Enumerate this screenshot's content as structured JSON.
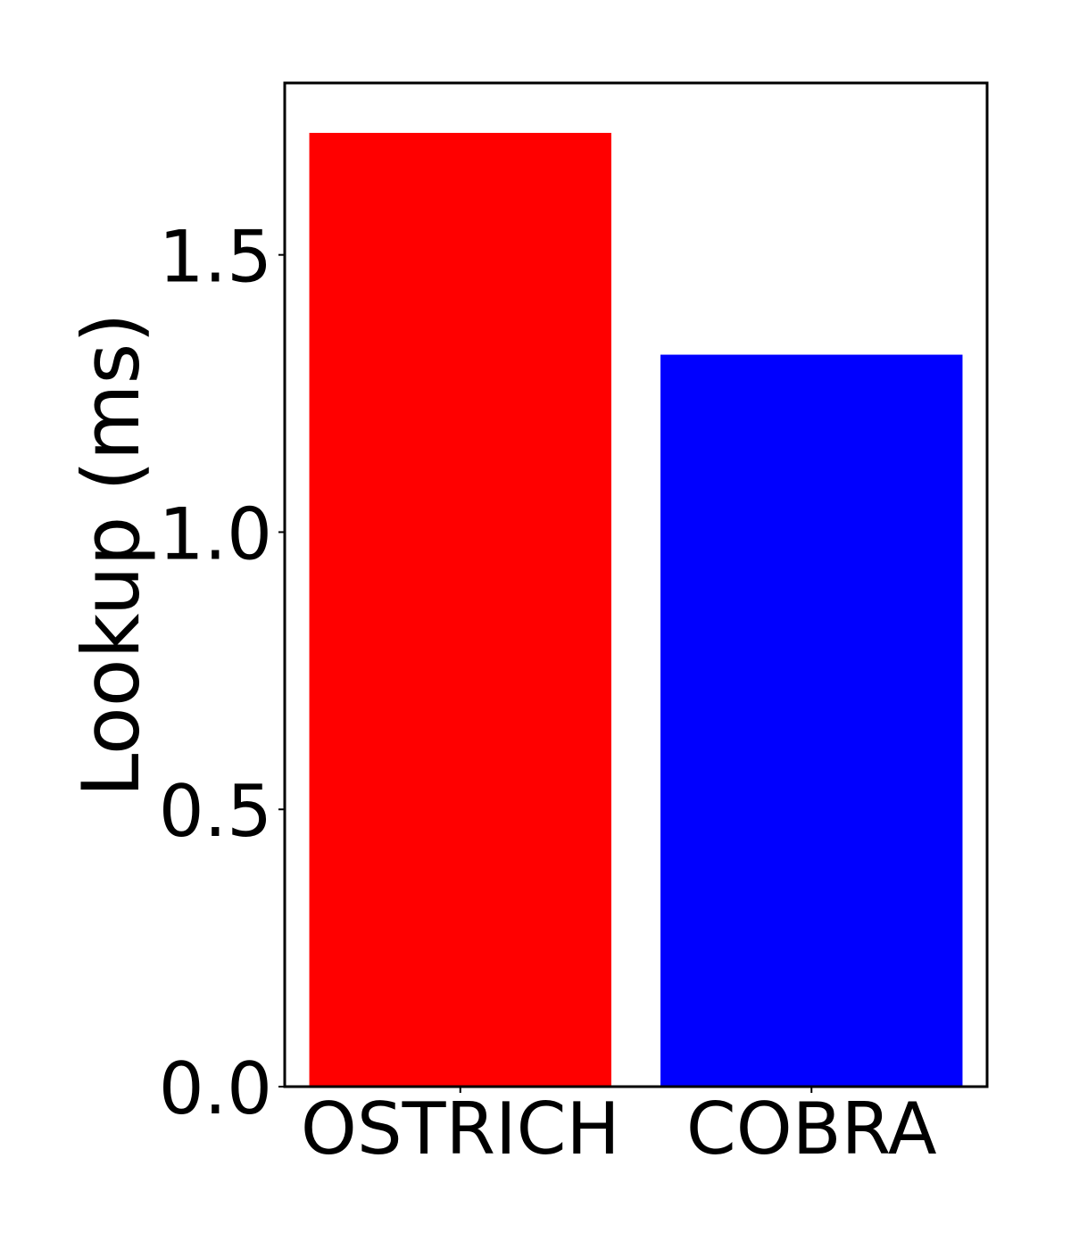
{
  "chart_data": {
    "type": "bar",
    "categories": [
      "OSTRICH",
      "COBRA"
    ],
    "values": [
      1.72,
      1.32
    ],
    "colors": [
      "#ff0000",
      "#0000ff"
    ],
    "xlabel": "",
    "ylabel": "Lookup (ms)",
    "ylim": [
      0,
      1.81
    ],
    "yticks": [
      0.0,
      0.5,
      1.0,
      1.5
    ],
    "ytick_labels": [
      "0.0",
      "0.5",
      "1.0",
      "1.5"
    ],
    "grid": false,
    "legend": "none"
  }
}
